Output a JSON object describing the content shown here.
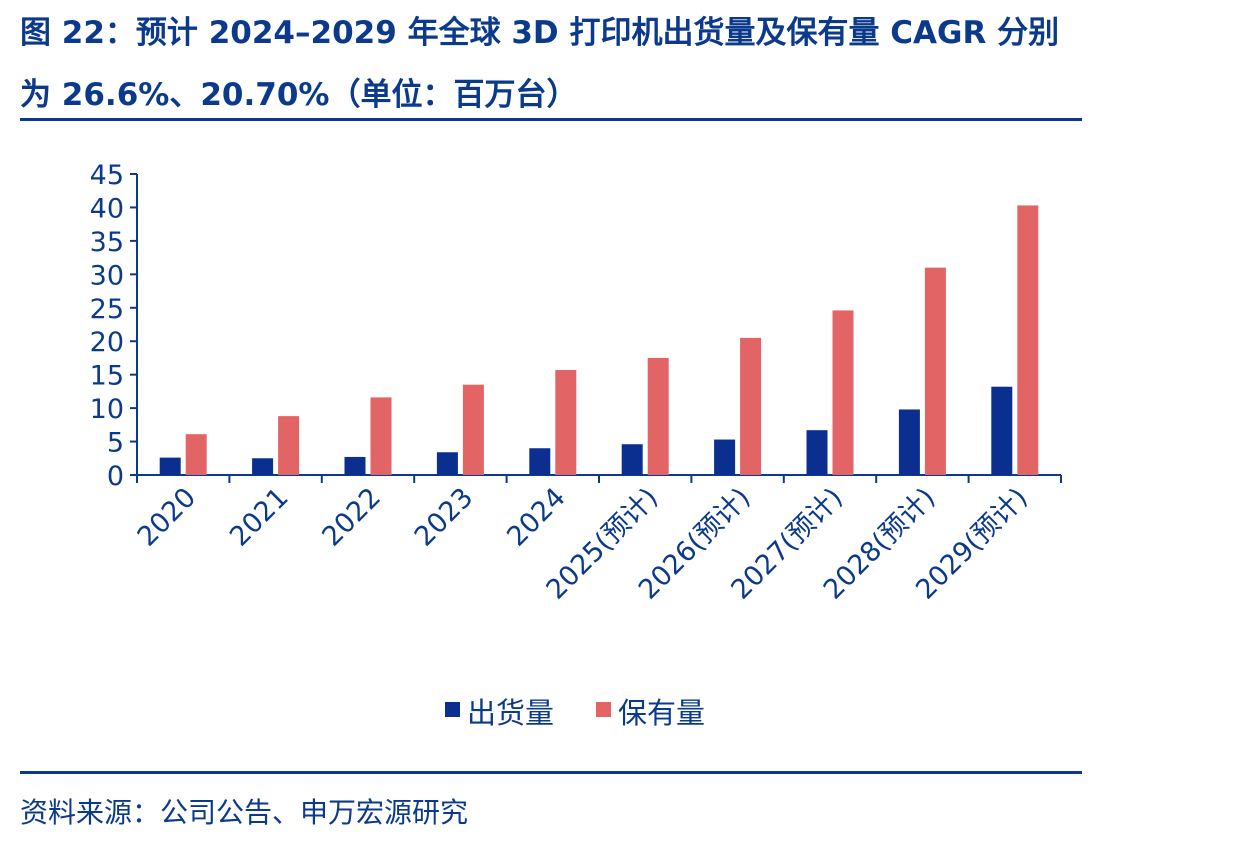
{
  "title": "图 22：预计 2024–2029 年全球 3D 打印机出货量及保有量 CAGR 分别为 26.6%、20.70%（单位：百万台）",
  "source": "资料来源：公司公告、申万宏源研究",
  "colors": {
    "title": "#0b3a8c",
    "axis": "#0b3a8c",
    "shipments": "#0a2f8f",
    "installed_base": "#e36464"
  },
  "chart_data": {
    "type": "bar",
    "categories": [
      "2020",
      "2021",
      "2022",
      "2023",
      "2024",
      "2025(预计)",
      "2026(预计)",
      "2027(预计)",
      "2028(预计)",
      "2029(预计)"
    ],
    "series": [
      {
        "name": "出货量",
        "values": [
          2.6,
          2.5,
          2.7,
          3.4,
          4.0,
          4.6,
          5.3,
          6.7,
          9.8,
          13.2
        ]
      },
      {
        "name": "保有量",
        "values": [
          6.1,
          8.8,
          11.6,
          13.5,
          15.7,
          17.5,
          20.5,
          24.6,
          31.0,
          40.3
        ]
      }
    ],
    "yticks": [
      0,
      5,
      10,
      15,
      20,
      25,
      30,
      35,
      40,
      45
    ],
    "ylim": [
      0,
      45
    ],
    "legend_position": "bottom-center",
    "grid": false
  }
}
